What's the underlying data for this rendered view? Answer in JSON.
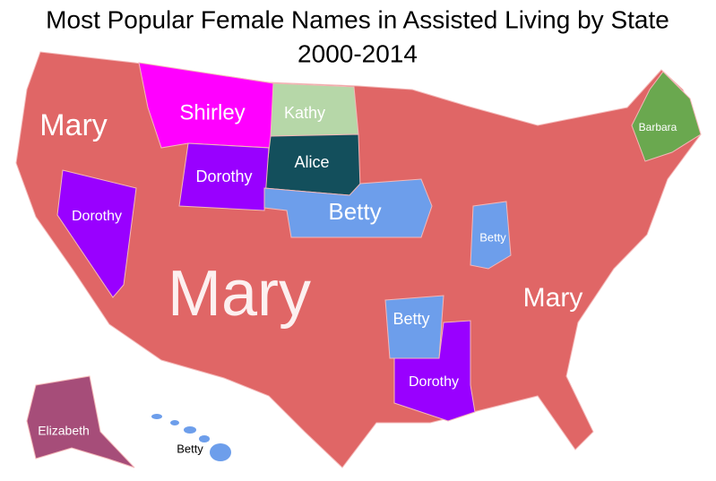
{
  "header": {
    "title": "Most Popular Female Names in Assisted Living by State",
    "subtitle": "2000-2014"
  },
  "labels": [
    {
      "text": "Mary"
    },
    {
      "text": "Shirley"
    },
    {
      "text": "Kathy"
    },
    {
      "text": "Barbara"
    },
    {
      "text": "Alice"
    },
    {
      "text": "Dorothy"
    },
    {
      "text": "Dorothy"
    },
    {
      "text": "Betty"
    },
    {
      "text": "Betty"
    },
    {
      "text": "Mary"
    },
    {
      "text": "Mary"
    },
    {
      "text": "Betty"
    },
    {
      "text": "Dorothy"
    },
    {
      "text": "Elizabeth"
    },
    {
      "text": "Betty"
    }
  ]
}
